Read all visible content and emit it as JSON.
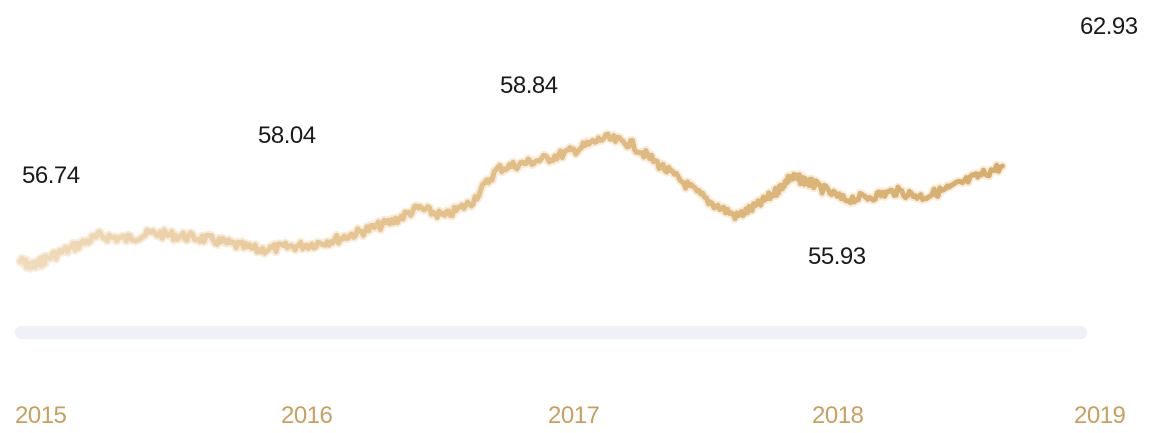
{
  "chart_data": {
    "type": "line",
    "title": "",
    "xlabel": "",
    "ylabel": "",
    "x_ticks": [
      "2015",
      "2016",
      "2017",
      "2018",
      "2019"
    ],
    "ylim": [
      53.5,
      63.5
    ],
    "series": [
      {
        "values_x": [
          2015.0,
          2015.05,
          2015.1,
          2015.2,
          2015.3,
          2015.4,
          2015.5,
          2015.6,
          2015.7,
          2015.8,
          2015.9,
          2016.0,
          2016.1,
          2016.2,
          2016.3,
          2016.4,
          2016.5,
          2016.6,
          2016.7,
          2016.8,
          2016.9,
          2017.0,
          2017.1,
          2017.2,
          2017.3,
          2017.4,
          2017.5,
          2017.6,
          2017.7,
          2017.78,
          2017.85,
          2017.9,
          2017.95,
          2018.0,
          2018.1,
          2018.2,
          2018.3,
          2018.4,
          2018.5,
          2018.6,
          2018.7,
          2018.8,
          2018.9,
          2019.0
        ],
        "values_y": [
          55.6,
          55.4,
          55.7,
          56.1,
          56.5,
          56.4,
          56.6,
          56.5,
          56.4,
          56.2,
          56.0,
          56.1,
          56.2,
          56.4,
          56.7,
          57.0,
          57.5,
          57.2,
          57.7,
          58.9,
          59.1,
          59.3,
          59.6,
          60.0,
          59.8,
          59.1,
          58.4,
          57.7,
          57.2,
          57.6,
          58.1,
          58.6,
          58.5,
          58.3,
          57.8,
          57.9,
          58.1,
          57.9,
          58.2,
          58.6,
          59.0,
          56.74,
          58.04,
          58.84
        ]
      }
    ],
    "annotations": [
      "56.74",
      "58.04",
      "58.84",
      "55.93",
      "62.93"
    ],
    "line_color": "#dcb47a",
    "band_color": "#eef2f6",
    "tick_color": "#c9a060",
    "annotation_color": "#1a1a1a"
  }
}
